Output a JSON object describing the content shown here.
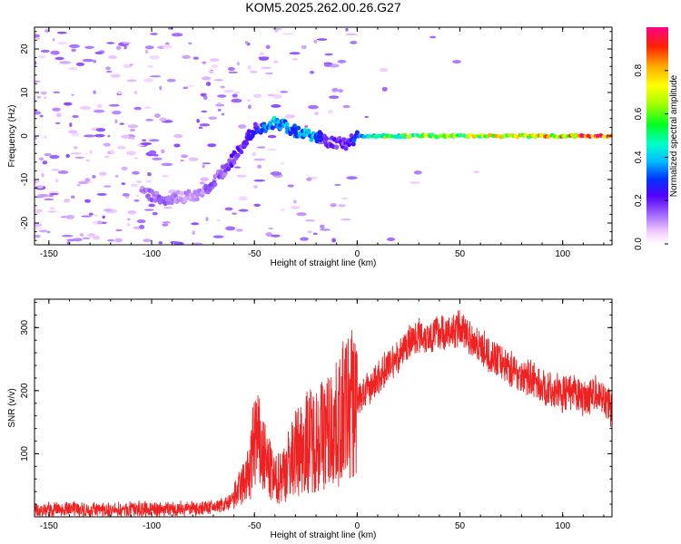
{
  "title": "KOM5.2025.262.00.26.G27",
  "chart_data": [
    {
      "type": "heatmap",
      "name": "spectrogram",
      "xlabel": "Height of straight line (km)",
      "ylabel": "Frequency (Hz)",
      "xlim": [
        -157,
        124
      ],
      "ylim": [
        -25,
        25
      ],
      "xticks": [
        -150,
        -100,
        -50,
        0,
        50,
        100
      ],
      "yticks": [
        -20,
        -10,
        0,
        10,
        20
      ],
      "colorbar": {
        "label": "Normalized spectral amplitude",
        "range": [
          0,
          1
        ],
        "ticks": [
          0.0,
          0.2,
          0.4,
          0.6,
          0.8
        ],
        "tick_labels": [
          "0.0",
          "0.2",
          "0.4",
          "0.6",
          "0.8"
        ]
      },
      "ridge": {
        "description": "dominant frequency track vs height",
        "height_km": [
          -105,
          -95,
          -85,
          -78,
          -72,
          -65,
          -60,
          -55,
          -50,
          -45,
          -40,
          -35,
          -30,
          -25,
          -20,
          -15,
          -10,
          -5,
          0,
          10,
          30,
          50,
          70,
          90,
          110,
          124
        ],
        "frequency_hz": [
          -13,
          -14.5,
          -14,
          -13.5,
          -12,
          -8,
          -5,
          -2,
          1.5,
          2,
          3,
          2.5,
          1,
          0.5,
          0,
          -1,
          -1.5,
          -2,
          0,
          0,
          0,
          0,
          0,
          0,
          0,
          0
        ],
        "amplitude": [
          0.12,
          0.15,
          0.1,
          0.1,
          0.15,
          0.15,
          0.2,
          0.2,
          0.25,
          0.35,
          0.4,
          0.35,
          0.3,
          0.45,
          0.35,
          0.2,
          0.2,
          0.2,
          0.3,
          0.55,
          0.6,
          0.65,
          0.7,
          0.75,
          0.85,
          0.95
        ]
      }
    },
    {
      "type": "line",
      "name": "snr",
      "xlabel": "Height of straight line (km)",
      "ylabel": "SNR (v/v)",
      "xlim": [
        -157,
        124
      ],
      "ylim": [
        0,
        345
      ],
      "xticks": [
        -150,
        -100,
        -50,
        0,
        50,
        100
      ],
      "yticks": [
        100,
        200,
        300
      ],
      "series": [
        {
          "name": "SNR",
          "color": "#ee2222",
          "x": [
            -157,
            -140,
            -120,
            -100,
            -80,
            -70,
            -62,
            -57,
            -52,
            -50,
            -48,
            -45,
            -40,
            -35,
            -30,
            -25,
            -20,
            -15,
            -10,
            -5,
            0,
            5,
            10,
            15,
            20,
            25,
            30,
            35,
            40,
            45,
            50,
            55,
            60,
            65,
            70,
            75,
            80,
            85,
            90,
            95,
            100,
            105,
            110,
            115,
            120,
            124
          ],
          "values": [
            10,
            12,
            10,
            12,
            13,
            15,
            22,
            45,
            70,
            130,
            115,
            90,
            55,
            75,
            100,
            120,
            125,
            135,
            145,
            175,
            185,
            200,
            220,
            240,
            255,
            275,
            290,
            285,
            295,
            290,
            300,
            285,
            270,
            255,
            245,
            235,
            225,
            220,
            205,
            200,
            195,
            195,
            190,
            195,
            190,
            170
          ]
        }
      ]
    }
  ]
}
